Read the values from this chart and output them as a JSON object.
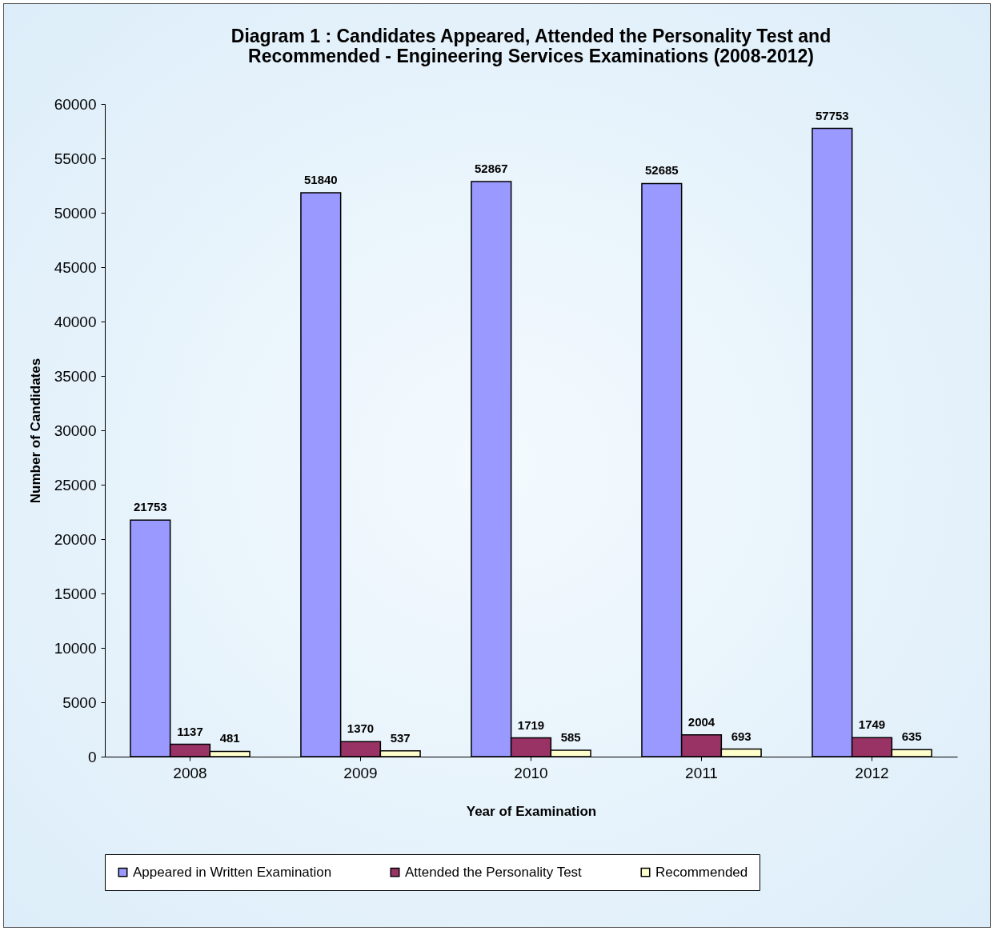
{
  "chart_data": {
    "type": "bar",
    "title": [
      "Diagram 1 : Candidates Appeared, Attended  the Personality Test and",
      "Recommended - Engineering Services Examinations (2008-2012)"
    ],
    "xlabel": "Year of Examination",
    "ylabel": "Number of Candidates",
    "categories": [
      "2008",
      "2009",
      "2010",
      "2011",
      "2012"
    ],
    "series": [
      {
        "name": "Appeared in Written Examination",
        "color": "#9999ff",
        "values": [
          21753,
          51840,
          52867,
          52685,
          57753
        ]
      },
      {
        "name": "Attended the Personality Test",
        "color": "#993366",
        "values": [
          1137,
          1370,
          1719,
          2004,
          1749
        ]
      },
      {
        "name": "Recommended",
        "color": "#ffffcc",
        "values": [
          481,
          537,
          585,
          693,
          635
        ]
      }
    ],
    "ylim": [
      0,
      60000
    ],
    "yticks": [
      0,
      5000,
      10000,
      15000,
      20000,
      25000,
      30000,
      35000,
      40000,
      45000,
      50000,
      55000,
      60000
    ],
    "grid": false,
    "legend": "bottom",
    "data_labels": true
  }
}
